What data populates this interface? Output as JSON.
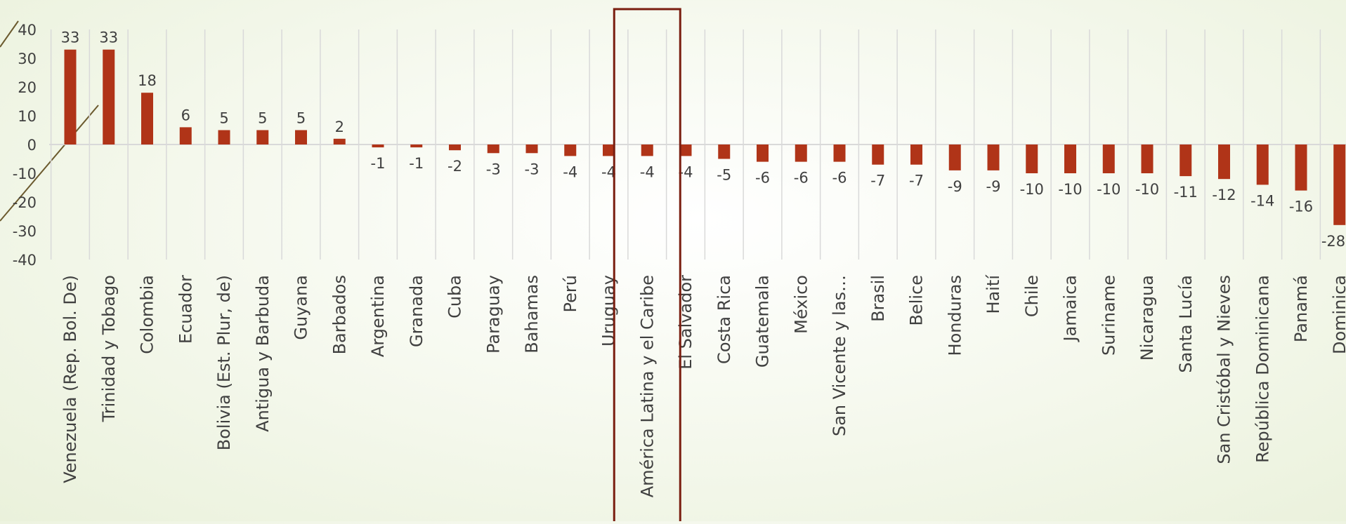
{
  "chart_data": {
    "type": "bar",
    "title": "",
    "xlabel": "",
    "ylabel": "",
    "ylim": [
      -40,
      40
    ],
    "yticks": [
      40,
      30,
      20,
      10,
      0,
      -10,
      -20,
      -30,
      -40
    ],
    "grid": true,
    "legend": "none",
    "highlighted_category": "América Latina y el Caribe",
    "categories": [
      "Venezuela (Rep. Bol. De)",
      "Trinidad y Tobago",
      "Colombia",
      "Ecuador",
      "Bolivia (Est. Plur, de)",
      "Antigua y Barbuda",
      "Guyana",
      "Barbados",
      "Argentina",
      "Granada",
      "Cuba",
      "Paraguay",
      "Bahamas",
      "Perú",
      "Uruguay",
      "América Latina y el Caribe",
      "El Salvador",
      "Costa Rica",
      "Guatemala",
      "México",
      "San Vicente y las…",
      "Brasil",
      "Belice",
      "Honduras",
      "Haití",
      "Chile",
      "Jamaica",
      "Suriname",
      "Nicaragua",
      "Santa Lucía",
      "San Cristóbal y Nieves",
      "República Dominicana",
      "Panamá",
      "Dominica"
    ],
    "values": [
      33,
      33,
      18,
      6,
      5,
      5,
      5,
      2,
      -1,
      -1,
      -2,
      -3,
      -3,
      -4,
      -4,
      -4,
      -4,
      -5,
      -6,
      -6,
      -6,
      -7,
      -7,
      -9,
      -9,
      -10,
      -10,
      -10,
      -10,
      -11,
      -12,
      -14,
      -16,
      -28
    ],
    "value_labels": [
      "33",
      "33",
      "18",
      "6",
      "5",
      "5",
      "5",
      "2",
      "-1",
      "-1",
      "-2",
      "-3",
      "-3",
      "-4",
      "-4",
      "-4",
      "-4",
      "-5",
      "-6",
      "-6",
      "-6",
      "-7",
      "-7",
      "-9",
      "-9",
      "-10",
      "-10",
      "-10",
      "-10",
      "-11",
      "-12",
      "-14",
      "-16",
      "-28"
    ],
    "colors": {
      "bar": "#b03418",
      "highlight_box": "#7a1e10",
      "grid": "#d9d9d9",
      "text": "#404040",
      "decor_line": "#6b5a2e"
    }
  }
}
